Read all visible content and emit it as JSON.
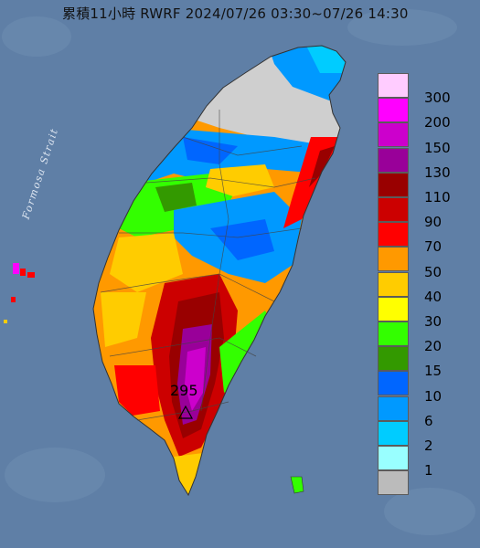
{
  "title": "累積11小時 RWRF 2024/07/26 03:30~07/26 14:30",
  "strait_label": "Formosa Strait",
  "max_value_label": "295",
  "legend": {
    "colors": [
      "#ffccff",
      "#ff00ff",
      "#cc00cc",
      "#990099",
      "#990000",
      "#cc0000",
      "#ff0000",
      "#ff9900",
      "#ffcc00",
      "#ffff00",
      "#33ff00",
      "#339900",
      "#0066ff",
      "#0099ff",
      "#00ccff",
      "#99ffff",
      "#bbbbbb"
    ],
    "labels": [
      "300",
      "200",
      "150",
      "130",
      "110",
      "90",
      "70",
      "50",
      "40",
      "30",
      "20",
      "15",
      "10",
      "6",
      "2",
      "1"
    ]
  },
  "colors": {
    "sea": "#5f7fa6",
    "land_low": "#cfcfcf"
  }
}
